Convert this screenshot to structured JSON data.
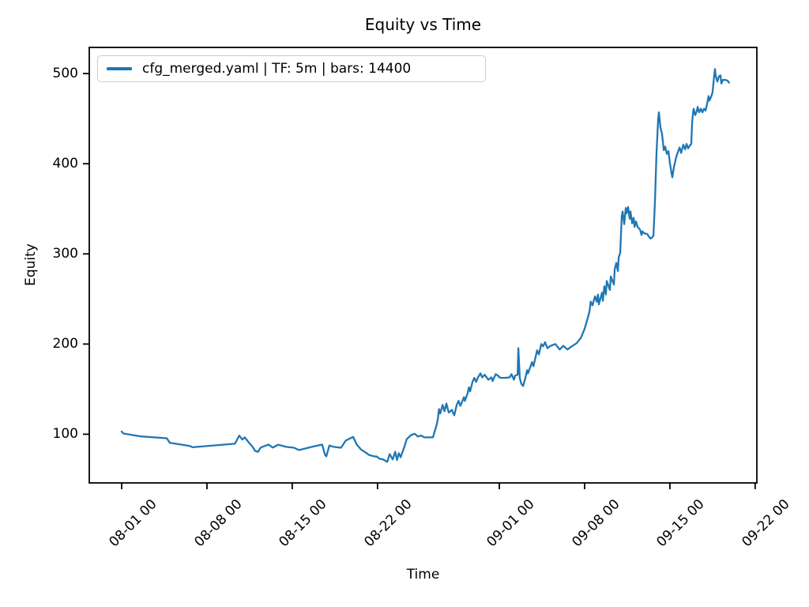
{
  "figure": {
    "title": "Equity vs Time",
    "xlabel": "Time",
    "ylabel": "Equity",
    "legend": {
      "label": "cfg_merged.yaml | TF: 5m | bars: 14400"
    }
  },
  "colors": {
    "line": "#1f77b4",
    "text": "#000000",
    "frame": "#000000",
    "background": "#ffffff",
    "legend_border": "#cccccc"
  },
  "chart_data": {
    "type": "line",
    "title": "Equity vs Time",
    "xlabel": "Time",
    "ylabel": "Equity",
    "grid": false,
    "legend_position": "upper left",
    "x_unit": "days after first tick (08-01 00)",
    "xlim_days": [
      -2.66,
      52.14
    ],
    "ylim": [
      46,
      529
    ],
    "x_ticks": [
      {
        "day": 0,
        "label": "08-01 00"
      },
      {
        "day": 7,
        "label": "08-08 00"
      },
      {
        "day": 14,
        "label": "08-15 00"
      },
      {
        "day": 21,
        "label": "08-22 00"
      },
      {
        "day": 31,
        "label": "09-01 00"
      },
      {
        "day": 38,
        "label": "09-08 00"
      },
      {
        "day": 45,
        "label": "09-15 00"
      },
      {
        "day": 52,
        "label": "09-22 00"
      }
    ],
    "y_ticks": [
      100,
      200,
      300,
      400,
      500
    ],
    "series": [
      {
        "name": "cfg_merged.yaml | TF: 5m | bars: 14400",
        "color": "#1f77b4",
        "points": [
          [
            0,
            103
          ],
          [
            0.15,
            100.8
          ],
          [
            1.6,
            97.5
          ],
          [
            3.7,
            95.5
          ],
          [
            3.8,
            93.5
          ],
          [
            3.95,
            90.5
          ],
          [
            5.6,
            87
          ],
          [
            5.8,
            85.5
          ],
          [
            9.3,
            89.5
          ],
          [
            9.65,
            98.5
          ],
          [
            9.9,
            94
          ],
          [
            10.1,
            96.5
          ],
          [
            10.45,
            90.5
          ],
          [
            10.75,
            86
          ],
          [
            10.95,
            81.5
          ],
          [
            11.2,
            80.5
          ],
          [
            11.4,
            85
          ],
          [
            11.6,
            86.2
          ],
          [
            12.05,
            88.5
          ],
          [
            12.4,
            85.2
          ],
          [
            12.85,
            88.3
          ],
          [
            13.5,
            86
          ],
          [
            14.15,
            85
          ],
          [
            14.55,
            82.5
          ],
          [
            15,
            84
          ],
          [
            15.6,
            86
          ],
          [
            16.45,
            88.5
          ],
          [
            16.7,
            77
          ],
          [
            16.8,
            75.5
          ],
          [
            17.05,
            87.5
          ],
          [
            17.4,
            86
          ],
          [
            18,
            85
          ],
          [
            18.4,
            93
          ],
          [
            19,
            97
          ],
          [
            19.3,
            88.5
          ],
          [
            19.65,
            83
          ],
          [
            20,
            80
          ],
          [
            20.3,
            77
          ],
          [
            20.7,
            75.5
          ],
          [
            20.95,
            75.2
          ],
          [
            21.15,
            73
          ],
          [
            21.45,
            72
          ],
          [
            21.8,
            69.5
          ],
          [
            22,
            78
          ],
          [
            22.25,
            72
          ],
          [
            22.45,
            80.5
          ],
          [
            22.6,
            71.5
          ],
          [
            22.75,
            79
          ],
          [
            22.9,
            74.5
          ],
          [
            23.2,
            86
          ],
          [
            23.4,
            94.5
          ],
          [
            23.75,
            99
          ],
          [
            24.05,
            100.5
          ],
          [
            24.3,
            97.5
          ],
          [
            24.6,
            98.5
          ],
          [
            24.85,
            96.5
          ],
          [
            25.55,
            96.5
          ],
          [
            25.7,
            103.5
          ],
          [
            25.85,
            110
          ],
          [
            25.95,
            117
          ],
          [
            26.05,
            128
          ],
          [
            26.15,
            123
          ],
          [
            26.35,
            132.5
          ],
          [
            26.5,
            125.5
          ],
          [
            26.65,
            134
          ],
          [
            26.85,
            124
          ],
          [
            27.1,
            127
          ],
          [
            27.3,
            121
          ],
          [
            27.5,
            132.5
          ],
          [
            27.65,
            137
          ],
          [
            27.8,
            131.5
          ],
          [
            28.1,
            141
          ],
          [
            28.17,
            137
          ],
          [
            28.4,
            145.5
          ],
          [
            28.5,
            152
          ],
          [
            28.6,
            147.5
          ],
          [
            28.8,
            158
          ],
          [
            28.95,
            162.5
          ],
          [
            29.1,
            158
          ],
          [
            29.25,
            163
          ],
          [
            29.45,
            167.5
          ],
          [
            29.6,
            163
          ],
          [
            29.8,
            166
          ],
          [
            30.1,
            160.5
          ],
          [
            30.35,
            163
          ],
          [
            30.45,
            159
          ],
          [
            30.7,
            166.5
          ],
          [
            30.9,
            165
          ],
          [
            31,
            163
          ],
          [
            31.2,
            162.5
          ],
          [
            31.4,
            162.5
          ],
          [
            31.85,
            163
          ],
          [
            32,
            166.5
          ],
          [
            32.2,
            160.5
          ],
          [
            32.3,
            165
          ],
          [
            32.5,
            166
          ],
          [
            32.56,
            195.5
          ],
          [
            32.68,
            162.5
          ],
          [
            32.8,
            156
          ],
          [
            32.95,
            153.5
          ],
          [
            33.15,
            163
          ],
          [
            33.28,
            171
          ],
          [
            33.35,
            167.5
          ],
          [
            33.6,
            176.5
          ],
          [
            33.68,
            180
          ],
          [
            33.8,
            175.5
          ],
          [
            34,
            187
          ],
          [
            34.1,
            193
          ],
          [
            34.25,
            188.5
          ],
          [
            34.45,
            200
          ],
          [
            34.6,
            197.5
          ],
          [
            34.75,
            202
          ],
          [
            34.95,
            195.5
          ],
          [
            35.2,
            198
          ],
          [
            35.6,
            200
          ],
          [
            35.95,
            194
          ],
          [
            36.25,
            198
          ],
          [
            36.6,
            194
          ],
          [
            36.9,
            197
          ],
          [
            37.35,
            201
          ],
          [
            37.7,
            207
          ],
          [
            38,
            217
          ],
          [
            38.2,
            226
          ],
          [
            38.4,
            236
          ],
          [
            38.5,
            247
          ],
          [
            38.65,
            243
          ],
          [
            38.85,
            253
          ],
          [
            39,
            247
          ],
          [
            39.1,
            255
          ],
          [
            39.17,
            244
          ],
          [
            39.43,
            257
          ],
          [
            39.5,
            248
          ],
          [
            39.62,
            264
          ],
          [
            39.75,
            255
          ],
          [
            39.82,
            270
          ],
          [
            40.08,
            260
          ],
          [
            40.15,
            275
          ],
          [
            40.4,
            266
          ],
          [
            40.47,
            283
          ],
          [
            40.6,
            290
          ],
          [
            40.73,
            281
          ],
          [
            40.8,
            296
          ],
          [
            40.92,
            301
          ],
          [
            41.05,
            342
          ],
          [
            41.12,
            347
          ],
          [
            41.25,
            333
          ],
          [
            41.38,
            351
          ],
          [
            41.45,
            345
          ],
          [
            41.57,
            352
          ],
          [
            41.7,
            339
          ],
          [
            41.77,
            347
          ],
          [
            41.9,
            334
          ],
          [
            42.02,
            340
          ],
          [
            42.1,
            330
          ],
          [
            42.22,
            336
          ],
          [
            42.35,
            330
          ],
          [
            42.55,
            327
          ],
          [
            42.67,
            321
          ],
          [
            42.75,
            325
          ],
          [
            42.87,
            323
          ],
          [
            43.13,
            322
          ],
          [
            43.4,
            317
          ],
          [
            43.52,
            318
          ],
          [
            43.65,
            320
          ],
          [
            43.78,
            360
          ],
          [
            43.9,
            410
          ],
          [
            44.04,
            450
          ],
          [
            44.1,
            457
          ],
          [
            44.23,
            440
          ],
          [
            44.36,
            433
          ],
          [
            44.5,
            415
          ],
          [
            44.62,
            419
          ],
          [
            44.75,
            411
          ],
          [
            44.88,
            414
          ],
          [
            45,
            401
          ],
          [
            45.14,
            389
          ],
          [
            45.2,
            385
          ],
          [
            45.33,
            396
          ],
          [
            45.53,
            408
          ],
          [
            45.66,
            413
          ],
          [
            45.8,
            418
          ],
          [
            45.92,
            412
          ],
          [
            46.1,
            421
          ],
          [
            46.25,
            416
          ],
          [
            46.37,
            422
          ],
          [
            46.5,
            417
          ],
          [
            46.63,
            420
          ],
          [
            46.76,
            422
          ],
          [
            46.82,
            445
          ],
          [
            46.9,
            456
          ],
          [
            46.95,
            461
          ],
          [
            47.08,
            454
          ],
          [
            47.2,
            458
          ],
          [
            47.28,
            463
          ],
          [
            47.4,
            457
          ],
          [
            47.54,
            461
          ],
          [
            47.67,
            457
          ],
          [
            47.8,
            461
          ],
          [
            47.93,
            459
          ],
          [
            48.05,
            466
          ],
          [
            48.18,
            475
          ],
          [
            48.25,
            470
          ],
          [
            48.38,
            474
          ],
          [
            48.5,
            479
          ],
          [
            48.64,
            498
          ],
          [
            48.7,
            505
          ],
          [
            48.77,
            497
          ],
          [
            48.9,
            491
          ],
          [
            49.03,
            497
          ],
          [
            49.16,
            498
          ],
          [
            49.22,
            489
          ],
          [
            49.35,
            493
          ],
          [
            49.55,
            493
          ],
          [
            49.75,
            492
          ],
          [
            49.85,
            490
          ]
        ]
      }
    ]
  }
}
